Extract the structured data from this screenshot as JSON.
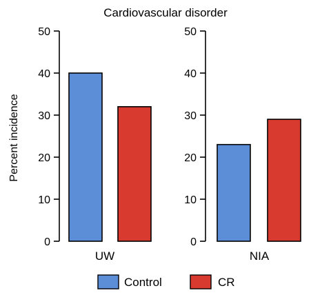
{
  "chart_data": {
    "type": "bar",
    "title": "Cardiovascular disorder",
    "ylabel": "Percent incidence",
    "xlabel": "",
    "ylim": [
      0,
      50
    ],
    "yticks": [
      "0",
      "10",
      "20",
      "30",
      "40",
      "50"
    ],
    "grid": false,
    "legend_position": "bottom",
    "series": [
      {
        "name": "Control",
        "color": "#5b8ed6"
      },
      {
        "name": "CR",
        "color": "#d93a2f"
      }
    ],
    "panels": [
      {
        "category": "UW",
        "values": [
          40,
          32
        ]
      },
      {
        "category": "NIA",
        "values": [
          23,
          29
        ]
      }
    ]
  }
}
